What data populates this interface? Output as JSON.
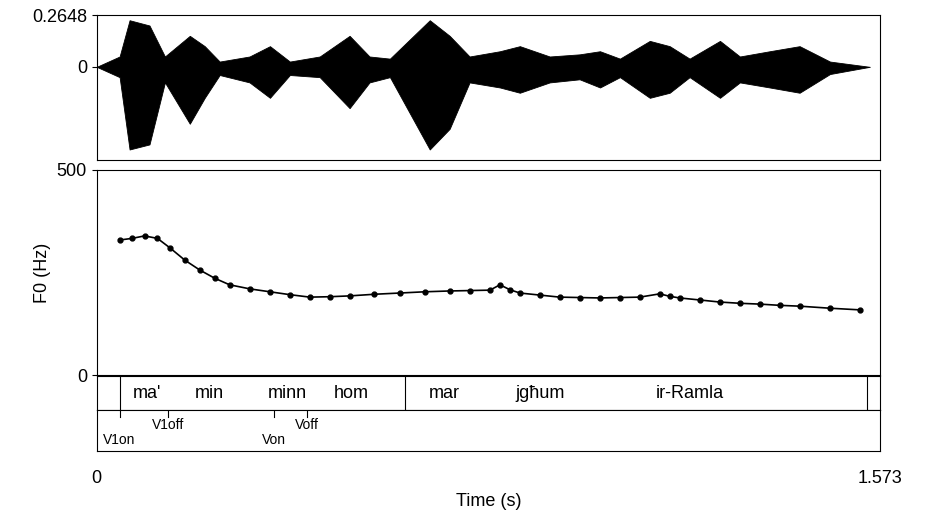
{
  "chart_data": {
    "type": "line",
    "x_label": "Time (s)",
    "xlim": [
      0,
      1.573
    ],
    "xticks": [
      0,
      1.573
    ],
    "waveform": {
      "ylim": [
        -0.477,
        0.2648
      ],
      "yticks": [
        0,
        0.2648
      ],
      "color": "#000000",
      "time": [
        0,
        0.046,
        0.066,
        0.106,
        0.137,
        0.187,
        0.217,
        0.247,
        0.307,
        0.348,
        0.388,
        0.448,
        0.508,
        0.548,
        0.589,
        0.669,
        0.709,
        0.749,
        0.81,
        0.85,
        0.91,
        0.97,
        1.011,
        1.051,
        1.111,
        1.151,
        1.191,
        1.252,
        1.292,
        1.352,
        1.412,
        1.473,
        1.553
      ],
      "upper": [
        0,
        0.053,
        0.239,
        0.212,
        0.053,
        0.159,
        0.106,
        0.027,
        0.053,
        0.106,
        0.027,
        0.053,
        0.159,
        0.053,
        0.042,
        0.239,
        0.159,
        0.053,
        0.08,
        0.106,
        0.053,
        0.064,
        0.08,
        0.042,
        0.133,
        0.106,
        0.042,
        0.133,
        0.053,
        0.08,
        0.106,
        0.027,
        0
      ],
      "lower": [
        0,
        -0.053,
        -0.424,
        -0.398,
        -0.08,
        -0.292,
        -0.159,
        -0.042,
        -0.08,
        -0.159,
        -0.042,
        -0.053,
        -0.212,
        -0.08,
        -0.053,
        -0.424,
        -0.318,
        -0.08,
        -0.106,
        -0.133,
        -0.08,
        -0.064,
        -0.106,
        -0.053,
        -0.159,
        -0.133,
        -0.053,
        -0.159,
        -0.08,
        -0.106,
        -0.133,
        -0.037,
        0
      ]
    },
    "y_label": "F0 (Hz)",
    "ylim": [
      0,
      500
    ],
    "yticks": [
      0,
      500
    ],
    "color": "#000000",
    "marker": "o",
    "line_style": "solid",
    "x": [
      0.046,
      0.071,
      0.096,
      0.122,
      0.147,
      0.177,
      0.207,
      0.237,
      0.267,
      0.308,
      0.348,
      0.388,
      0.428,
      0.468,
      0.508,
      0.558,
      0.609,
      0.659,
      0.709,
      0.75,
      0.79,
      0.81,
      0.83,
      0.85,
      0.89,
      0.93,
      0.97,
      1.01,
      1.051,
      1.091,
      1.131,
      1.151,
      1.171,
      1.212,
      1.252,
      1.292,
      1.332,
      1.372,
      1.412,
      1.473,
      1.533
    ],
    "values": [
      329,
      333,
      339,
      333,
      310,
      280,
      256,
      236,
      220,
      210,
      203,
      196,
      190,
      191,
      193,
      197,
      200,
      203,
      205,
      206,
      207,
      220,
      208,
      200,
      195,
      190,
      189,
      188,
      189,
      190,
      198,
      192,
      188,
      183,
      178,
      175,
      173,
      170,
      168,
      163,
      159
    ],
    "words": {
      "boundaries": [
        0.046,
        0.619,
        1.548
      ],
      "labels": [
        {
          "text": "ma'",
          "time": 0.1
        },
        {
          "text": "min",
          "time": 0.227
        },
        {
          "text": "minn",
          "time": 0.382
        },
        {
          "text": "hom",
          "time": 0.512
        },
        {
          "text": "mar",
          "time": 0.699
        },
        {
          "text": "jgħum",
          "time": 0.89
        },
        {
          "text": "ir-Ramla",
          "time": 1.191
        }
      ]
    },
    "points": [
      {
        "text": "V1on",
        "time": 0.046
      },
      {
        "text": "V1off",
        "time": 0.143
      },
      {
        "text": "Von",
        "time": 0.356
      },
      {
        "text": "Voff",
        "time": 0.422
      }
    ]
  }
}
